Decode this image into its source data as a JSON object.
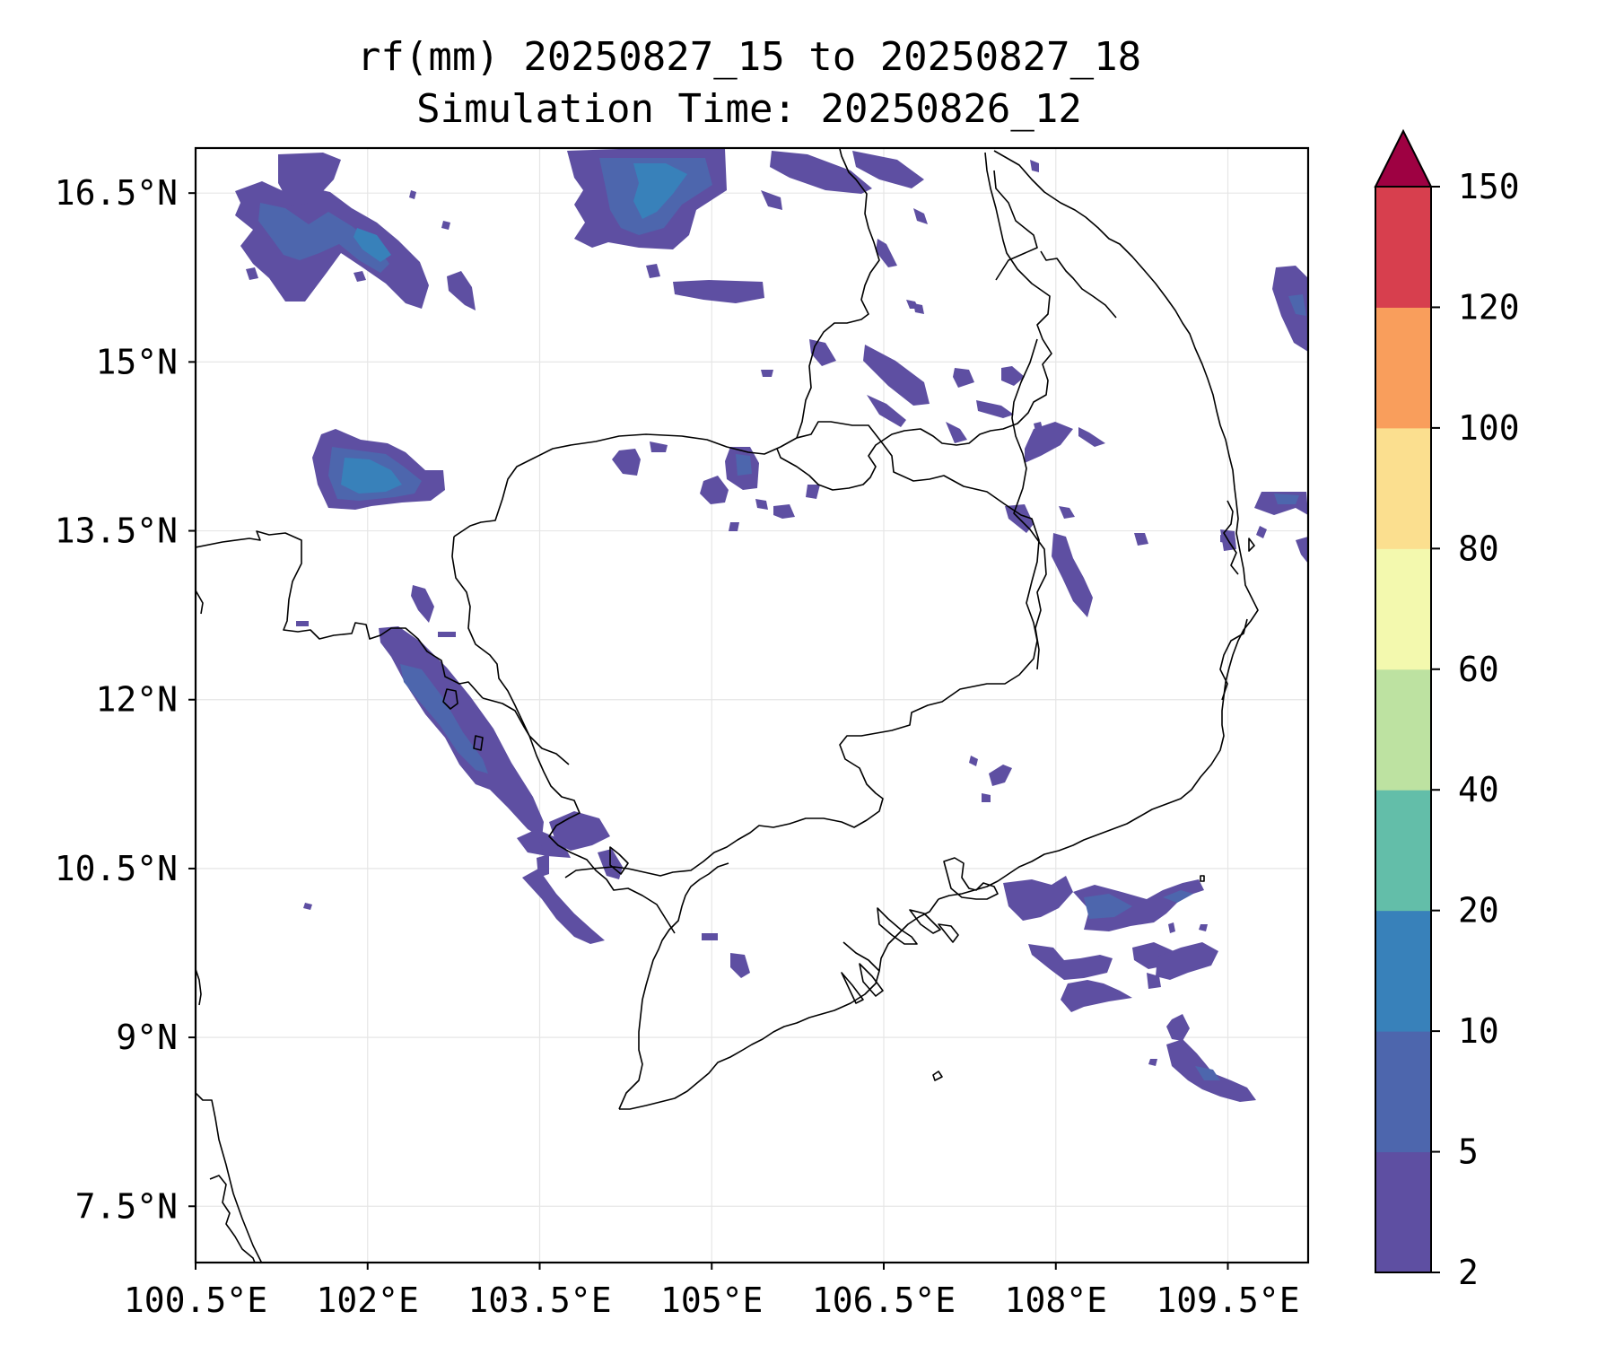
{
  "title": {
    "line1": "rf(mm) 20250827_15 to 20250827_18",
    "line2": "Simulation Time: 20250826_12"
  },
  "map": {
    "lon_range": [
      100.5,
      110.2
    ],
    "lat_range": [
      7.0,
      16.9
    ],
    "x_ticks": [
      100.5,
      102,
      103.5,
      105,
      106.5,
      108,
      109.5
    ],
    "x_tick_labels": [
      "100.5°E",
      "102°E",
      "103.5°E",
      "105°E",
      "106.5°E",
      "108°E",
      "109.5°E"
    ],
    "y_ticks": [
      16.5,
      15,
      13.5,
      12,
      10.5,
      9,
      7.5
    ],
    "y_tick_labels": [
      "16.5°N",
      "15°N",
      "13.5°N",
      "12°N",
      "10.5°N",
      "9°N",
      "7.5°N"
    ],
    "gridlines": true
  },
  "colorbar": {
    "levels": [
      2,
      5,
      10,
      20,
      40,
      60,
      80,
      100,
      120,
      150
    ],
    "labels": [
      "2",
      "5",
      "10",
      "20",
      "40",
      "60",
      "80",
      "100",
      "120",
      "150"
    ],
    "colors": [
      "#5e4fa2",
      "#4d66ad",
      "#3881ba",
      "#63bea9",
      "#bde2a1",
      "#f3f9ae",
      "#fbdf8f",
      "#f99e5c",
      "#d73f4e",
      "#9e0142"
    ],
    "extend": "max"
  }
}
